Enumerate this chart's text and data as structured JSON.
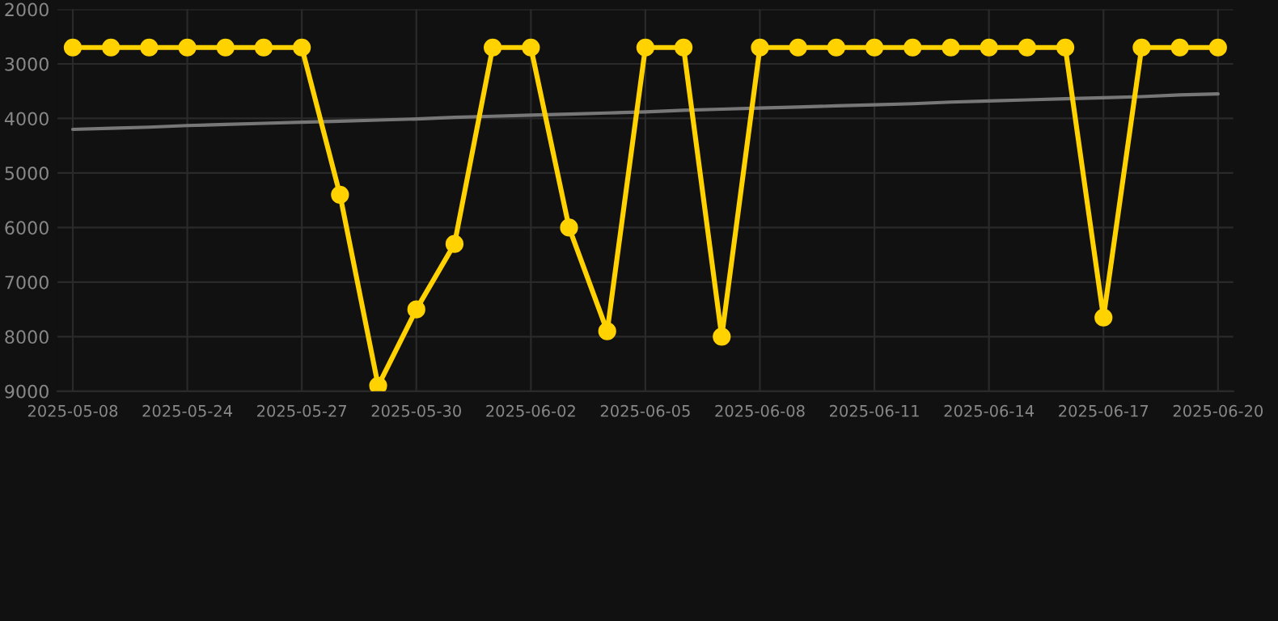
{
  "chart_data": {
    "type": "line",
    "categories": [
      "2025-05-08",
      null,
      null,
      "2025-05-24",
      null,
      null,
      "2025-05-27",
      null,
      null,
      "2025-05-30",
      null,
      null,
      "2025-06-02",
      null,
      null,
      "2025-06-05",
      null,
      null,
      "2025-06-08",
      null,
      null,
      "2025-06-11",
      null,
      null,
      "2025-06-14",
      null,
      null,
      "2025-06-17",
      null,
      null,
      "2025-06-20"
    ],
    "series": [
      {
        "color": "#ffd200",
        "marker": "circle",
        "values": [
          2700,
          2700,
          2700,
          2700,
          2700,
          2700,
          2700,
          5400,
          8900,
          7500,
          6300,
          2700,
          2700,
          6000,
          7900,
          2700,
          2700,
          8000,
          2700,
          2700,
          2700,
          2700,
          2700,
          2700,
          2700,
          2700,
          2700,
          7650,
          2700,
          2700,
          2700
        ]
      },
      {
        "type": "line",
        "color": "#777777",
        "marker": "none",
        "values": [
          4200,
          4180,
          4160,
          4130,
          4110,
          4090,
          4070,
          4050,
          4030,
          4010,
          3980,
          3960,
          3940,
          3920,
          3900,
          3880,
          3850,
          3830,
          3810,
          3790,
          3770,
          3750,
          3730,
          3700,
          3680,
          3660,
          3640,
          3620,
          3600,
          3570,
          3550
        ]
      }
    ],
    "ylim": [
      9000,
      2000
    ],
    "yticks": [
      2000,
      3000,
      4000,
      5000,
      6000,
      7000,
      8000,
      9000
    ],
    "grid": true
  }
}
